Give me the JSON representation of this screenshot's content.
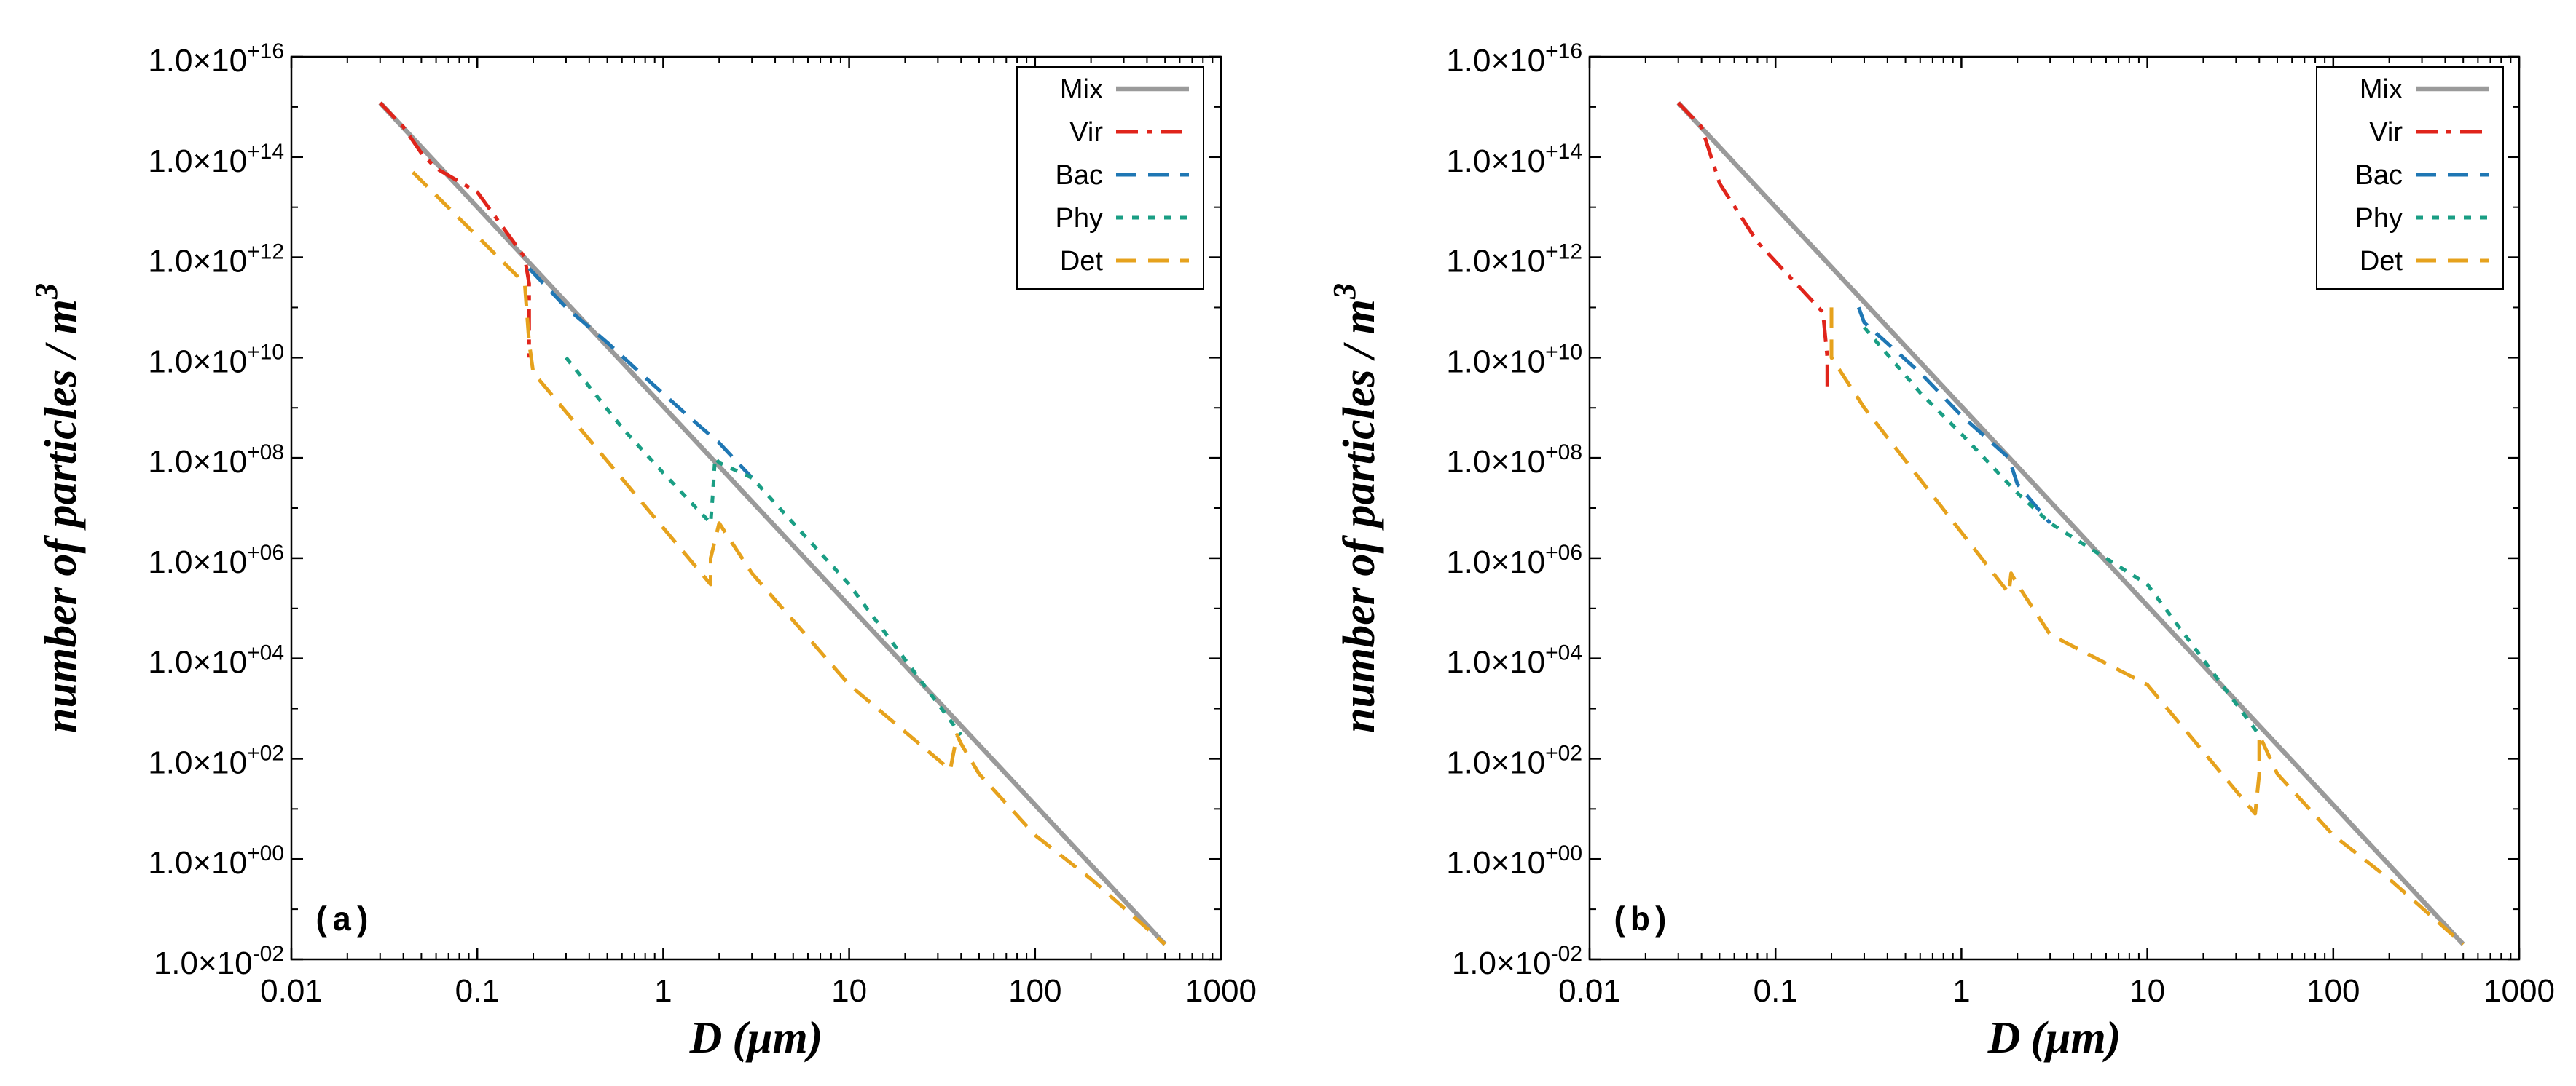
{
  "figure": {
    "y_axis_title": "number of particles / m",
    "y_axis_title_exponent": "3",
    "x_axis_title_d": "D",
    "x_axis_title_unit": "(μm)"
  },
  "colors": {
    "Mix": "#9a9a9a",
    "Vir": "#e0241b",
    "Bac": "#1f77b4",
    "Phy": "#1a9e84",
    "Det": "#e6a21d",
    "frame": "#000000"
  },
  "axes": {
    "x_ticks": [
      0.01,
      0.1,
      1,
      10,
      100,
      1000
    ],
    "x_tick_labels": [
      "0.01",
      "0.1",
      "1",
      "10",
      "100",
      "1000"
    ],
    "y_ticks": [
      16,
      14,
      12,
      10,
      8,
      6,
      4,
      2,
      0,
      -2
    ],
    "y_tick_mantissa": "1.0×10",
    "y_tick_exponents": [
      "+16",
      "+14",
      "+12",
      "+10",
      "+08",
      "+06",
      "+04",
      "+02",
      "+00",
      "-02"
    ]
  },
  "chart_data": [
    {
      "type": "line",
      "panel_label": "(a)",
      "xscale": "log",
      "yscale": "log",
      "xlim": [
        0.01,
        1000
      ],
      "ylim": [
        0.01,
        1e+16
      ],
      "xlabel": "D (μm)",
      "ylabel": "number of particles / m3",
      "legend_position": "top-right",
      "legend": [
        "Mix",
        "Vir",
        "Bac",
        "Phy",
        "Det"
      ],
      "series": [
        {
          "name": "Mix",
          "style": "solid",
          "x": [
            0.03,
            500
          ],
          "y": [
            1200000000000000.0,
            0.02
          ]
        },
        {
          "name": "Vir",
          "style": "dashdot",
          "x": [
            0.03,
            0.04,
            0.05,
            0.06,
            0.1,
            0.18,
            0.19,
            0.19
          ],
          "y": [
            1200000000000000.0,
            400000000000000.0,
            120000000000000.0,
            60000000000000.0,
            20000000000000.0,
            1000000000000.0,
            300000000000.0,
            10000000000.0
          ]
        },
        {
          "name": "Bac",
          "style": "dashed",
          "x": [
            0.19,
            0.3,
            0.5,
            0.8,
            1.5,
            2,
            3
          ],
          "y": [
            600000000000.0,
            100000000000.0,
            20000000000.0,
            4000000000.0,
            500000000.0,
            200000000.0,
            40000000.0
          ]
        },
        {
          "name": "Phy",
          "style": "dotted",
          "x": [
            0.3,
            0.6,
            1,
            1.8,
            1.85,
            1.9,
            2,
            3,
            10,
            40
          ],
          "y": [
            10000000000.0,
            400000000.0,
            50000000.0,
            5000000.0,
            20000000.0,
            100000000.0,
            80000000.0,
            40000000.0,
            300000.0,
            300.0
          ]
        },
        {
          "name": "Det",
          "style": "dashed",
          "x": [
            0.045,
            0.18,
            0.19,
            0.2,
            1.8,
            1.8,
            2,
            3,
            10,
            35,
            38,
            40,
            50,
            100,
            200,
            500
          ],
          "y": [
            50000000000000.0,
            300000000000.0,
            20000000000.0,
            5000000000.0,
            300000.0,
            1000000.0,
            5000000.0,
            500000.0,
            3000.0,
            60,
            300,
            200,
            50,
            3,
            0.4,
            0.02
          ]
        }
      ]
    },
    {
      "type": "line",
      "panel_label": "(b)",
      "xscale": "log",
      "yscale": "log",
      "xlim": [
        0.01,
        1000
      ],
      "ylim": [
        0.01,
        1e+16
      ],
      "xlabel": "D (μm)",
      "ylabel": "number of particles / m3",
      "legend_position": "top-right",
      "legend": [
        "Mix",
        "Vir",
        "Bac",
        "Phy",
        "Det"
      ],
      "series": [
        {
          "name": "Mix",
          "style": "solid",
          "x": [
            0.03,
            500
          ],
          "y": [
            1200000000000000.0,
            0.02
          ]
        },
        {
          "name": "Vir",
          "style": "dashdot",
          "x": [
            0.03,
            0.04,
            0.05,
            0.08,
            0.18,
            0.19,
            0.19
          ],
          "y": [
            1200000000000000.0,
            400000000000000.0,
            30000000000000.0,
            2000000000000.0,
            80000000000.0,
            10000000000.0,
            2000000000.0
          ]
        },
        {
          "name": "Bac",
          "style": "dashed",
          "x": [
            0.28,
            0.3,
            0.6,
            1,
            1.8,
            2,
            3
          ],
          "y": [
            100000000000.0,
            50000000000.0,
            5000000000.0,
            700000000.0,
            100000000.0,
            30000000.0,
            5000000.0
          ]
        },
        {
          "name": "Phy",
          "style": "dotted",
          "x": [
            0.3,
            0.6,
            1,
            1.8,
            2,
            3,
            10,
            40
          ],
          "y": [
            40000000000.0,
            2000000000.0,
            300000000.0,
            30000000.0,
            20000000.0,
            5000000.0,
            300000.0,
            300.0
          ]
        },
        {
          "name": "Det",
          "style": "dashed",
          "x": [
            0.2,
            0.2,
            0.3,
            1.8,
            1.85,
            2,
            3,
            10,
            38,
            40,
            40,
            50,
            100,
            200,
            500
          ],
          "y": [
            100000000000.0,
            10000000000.0,
            1000000000.0,
            200000.0,
            500000.0,
            300000.0,
            30000.0,
            3000.0,
            8,
            50,
            300.0,
            50,
            3,
            0.4,
            0.02
          ]
        }
      ]
    }
  ]
}
